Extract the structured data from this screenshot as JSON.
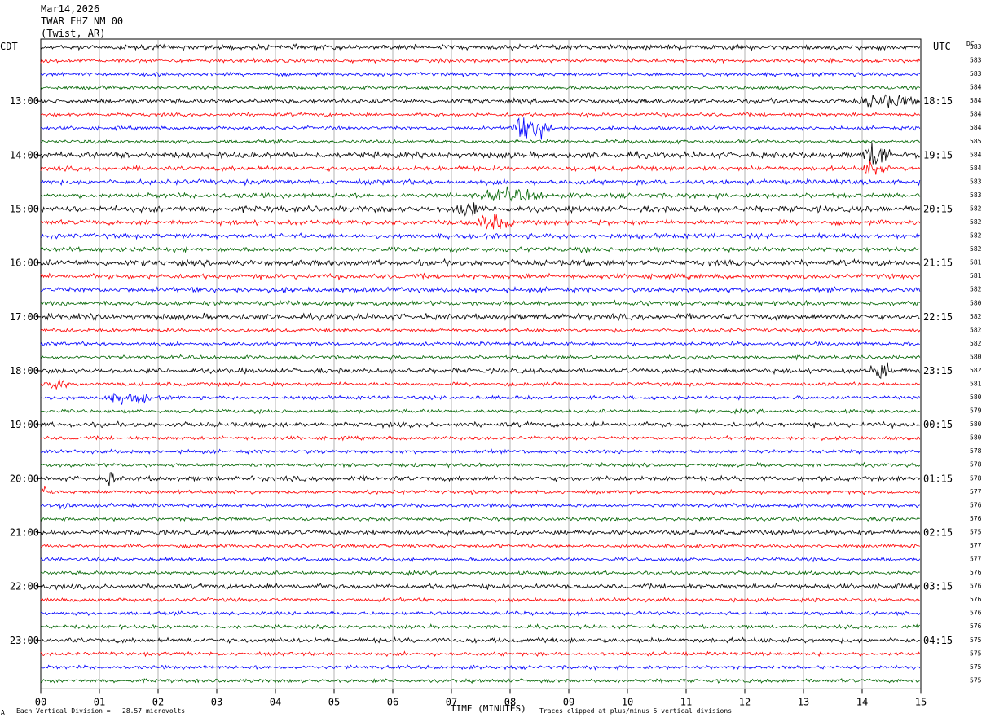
{
  "header": {
    "date": "Mar14,2026",
    "station": "TWAR EHZ NM 00",
    "location": "(Twist, AR)"
  },
  "left_tz": "CDT",
  "right_tz": "UTC",
  "dc_label": "DC",
  "footer": {
    "scale_note": "Each Vertical Division =   28.57 microvolts",
    "xlabel": "TIME (MINUTES)",
    "clip_note": "Traces clipped at plus/minus 5 vertical divisions",
    "corner_mark": "A"
  },
  "chart_data": {
    "type": "line",
    "title": "",
    "xlabel": "TIME (MINUTES)",
    "xlim": [
      0,
      15
    ],
    "x_ticks": [
      "00",
      "01",
      "02",
      "03",
      "04",
      "05",
      "06",
      "07",
      "08",
      "09",
      "10",
      "11",
      "12",
      "13",
      "14",
      "15"
    ],
    "trace_count": 48,
    "trace_minutes": 15,
    "trace_colors": [
      "#000000",
      "#ff0000",
      "#0000ff",
      "#006400"
    ],
    "left_hour_labels": [
      "13:00",
      "14:00",
      "15:00",
      "16:00",
      "17:00",
      "18:00",
      "19:00",
      "20:00",
      "21:00",
      "22:00",
      "23:00"
    ],
    "right_hour_labels": [
      "18:15",
      "19:15",
      "20:15",
      "21:15",
      "22:15",
      "23:15",
      "00:15",
      "01:15",
      "02:15",
      "03:15",
      "04:15"
    ],
    "dc_values": [
      "583",
      "583",
      "583",
      "584",
      "584",
      "584",
      "584",
      "585",
      "584",
      "584",
      "583",
      "583",
      "582",
      "582",
      "582",
      "582",
      "581",
      "581",
      "582",
      "580",
      "582",
      "582",
      "582",
      "580",
      "582",
      "581",
      "580",
      "579",
      "580",
      "580",
      "578",
      "578",
      "578",
      "577",
      "576",
      "576",
      "575",
      "577",
      "577",
      "576",
      "576",
      "576",
      "576",
      "576",
      "575",
      "575",
      "575",
      "575"
    ],
    "events": [
      {
        "trace": 4,
        "minute": 13.8,
        "duration": 1.2,
        "amplitude": 1.4
      },
      {
        "trace": 6,
        "minute": 7.9,
        "duration": 0.9,
        "amplitude": 2.7
      },
      {
        "trace": 8,
        "minute": 14.0,
        "duration": 0.5,
        "amplitude": 3.8
      },
      {
        "trace": 9,
        "minute": 14.0,
        "duration": 0.4,
        "amplitude": 2.2
      },
      {
        "trace": 11,
        "minute": 7.3,
        "duration": 1.4,
        "amplitude": 1.2
      },
      {
        "trace": 12,
        "minute": 7.0,
        "duration": 0.5,
        "amplitude": 1.8
      },
      {
        "trace": 13,
        "minute": 7.3,
        "duration": 0.8,
        "amplitude": 1.6
      },
      {
        "trace": 24,
        "minute": 14.1,
        "duration": 0.4,
        "amplitude": 2.2
      },
      {
        "trace": 25,
        "minute": 0.0,
        "duration": 0.5,
        "amplitude": 1.2
      },
      {
        "trace": 26,
        "minute": 1.0,
        "duration": 1.0,
        "amplitude": 1.1
      },
      {
        "trace": 32,
        "minute": 1.1,
        "duration": 0.2,
        "amplitude": 1.6
      },
      {
        "trace": 33,
        "minute": 0.0,
        "duration": 0.1,
        "amplitude": 2.4
      },
      {
        "trace": 34,
        "minute": 0.3,
        "duration": 0.2,
        "amplitude": 1.3
      }
    ]
  }
}
